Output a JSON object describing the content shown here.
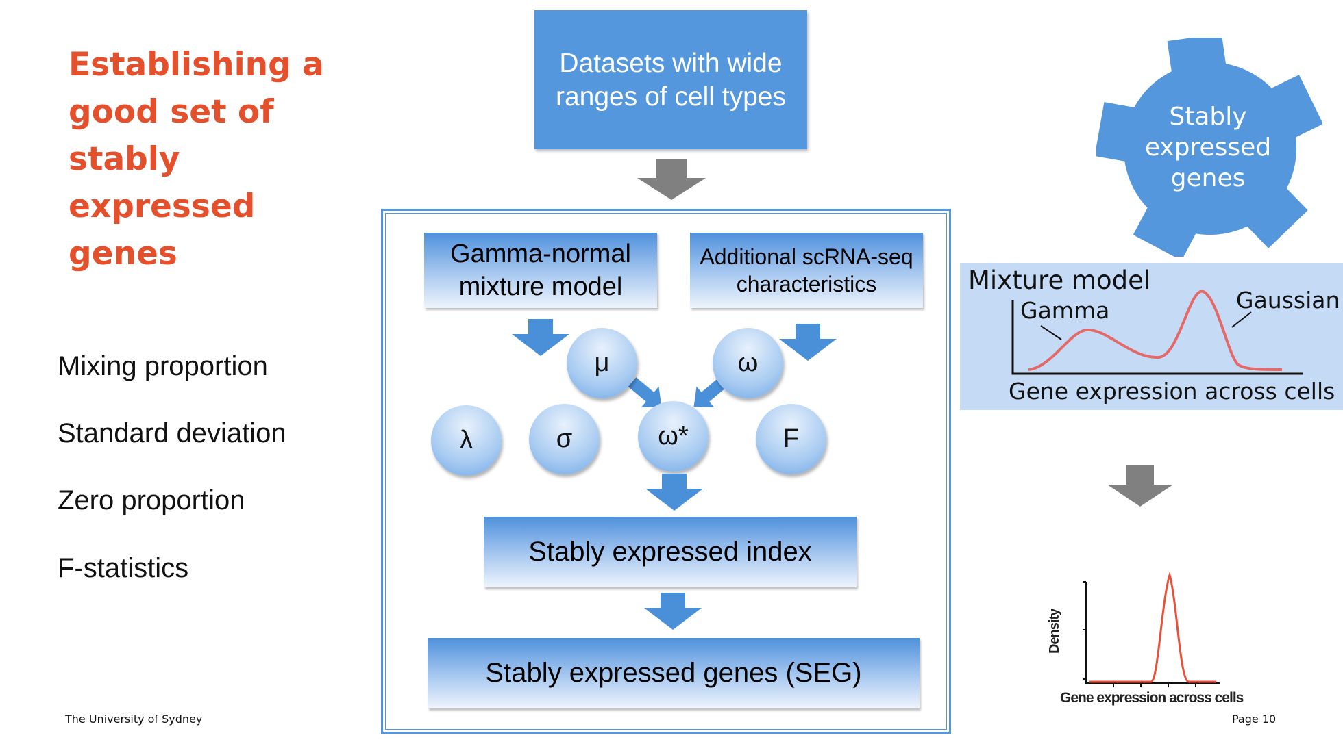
{
  "title": "Establishing a good set of stably expressed genes",
  "features": [
    "Mixing proportion",
    "Standard deviation",
    "Zero proportion",
    "F-statistics"
  ],
  "flow": {
    "datasets": "Datasets with wide ranges of cell types",
    "gamma_normal": "Gamma-normal mixture model",
    "additional": "Additional scRNA-seq characteristics",
    "params": {
      "mu": "μ",
      "omega": "ω",
      "lambda": "λ",
      "sigma": "σ",
      "omega_star": "ω*",
      "f": "F"
    },
    "index": "Stably expressed index",
    "seg": "Stably expressed genes (SEG)"
  },
  "gear": {
    "label": "Stably expressed genes"
  },
  "mixture_panel": {
    "title": "Mixture model",
    "gamma_label": "Gamma",
    "gaussian_label": "Gaussian",
    "xlabel": "Gene expression across cells"
  },
  "density_plot": {
    "ylabel": "Density",
    "xlabel": "Gene expression across cells"
  },
  "footer": {
    "left": "The University of Sydney",
    "right": "Page 10"
  },
  "colors": {
    "title": "#e4502c",
    "box_blue": "#5597dd",
    "arrow_blue": "#4a90d9",
    "arrow_gray": "#808080",
    "curve_red": "#e46a6a"
  }
}
